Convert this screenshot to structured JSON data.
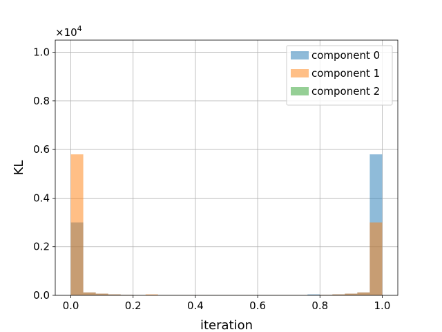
{
  "chart_data": {
    "type": "bar",
    "subtype": "overlapping-histogram",
    "xlabel": "iteration",
    "ylabel": "KL",
    "y_offset_base": "×10",
    "y_offset_exp": "4",
    "xlim": [
      -0.05,
      1.05
    ],
    "ylim": [
      0,
      10500
    ],
    "xticks": [
      0.0,
      0.2,
      0.4,
      0.6,
      0.8,
      1.0
    ],
    "xtick_labels": [
      "0.0",
      "0.2",
      "0.4",
      "0.6",
      "0.8",
      "1.0"
    ],
    "yticks": [
      0,
      2000,
      4000,
      6000,
      8000,
      10000
    ],
    "ytick_labels": [
      "0.0",
      "0.2",
      "0.4",
      "0.6",
      "0.8",
      "1.0"
    ],
    "grid": true,
    "legend_position": "upper right",
    "bin_edges": [
      0.0,
      0.04,
      0.08,
      0.12,
      0.16,
      0.2,
      0.24,
      0.28,
      0.32,
      0.36,
      0.4,
      0.44,
      0.48,
      0.52,
      0.56,
      0.6,
      0.64,
      0.68,
      0.72,
      0.76,
      0.8,
      0.84,
      0.88,
      0.92,
      0.96,
      1.0
    ],
    "series": [
      {
        "name": "component 0",
        "color": "#1f77b4",
        "opacity": 0.5,
        "values": [
          3000,
          120,
          70,
          40,
          20,
          10,
          10,
          10,
          10,
          10,
          10,
          10,
          10,
          10,
          10,
          10,
          10,
          10,
          10,
          40,
          20,
          40,
          70,
          120,
          5800
        ]
      },
      {
        "name": "component 1",
        "color": "#ff7f0e",
        "opacity": 0.5,
        "values": [
          5800,
          120,
          70,
          40,
          20,
          10,
          40,
          10,
          10,
          10,
          10,
          10,
          10,
          10,
          10,
          10,
          10,
          10,
          10,
          10,
          20,
          40,
          70,
          120,
          3000
        ]
      },
      {
        "name": "component 2",
        "color": "#2ca02c",
        "opacity": 0.5,
        "values": [
          0,
          0,
          0,
          0,
          0,
          0,
          0,
          0,
          0,
          0,
          0,
          0,
          0,
          0,
          0,
          0,
          0,
          0,
          0,
          0,
          0,
          0,
          0,
          0,
          0
        ]
      }
    ]
  }
}
